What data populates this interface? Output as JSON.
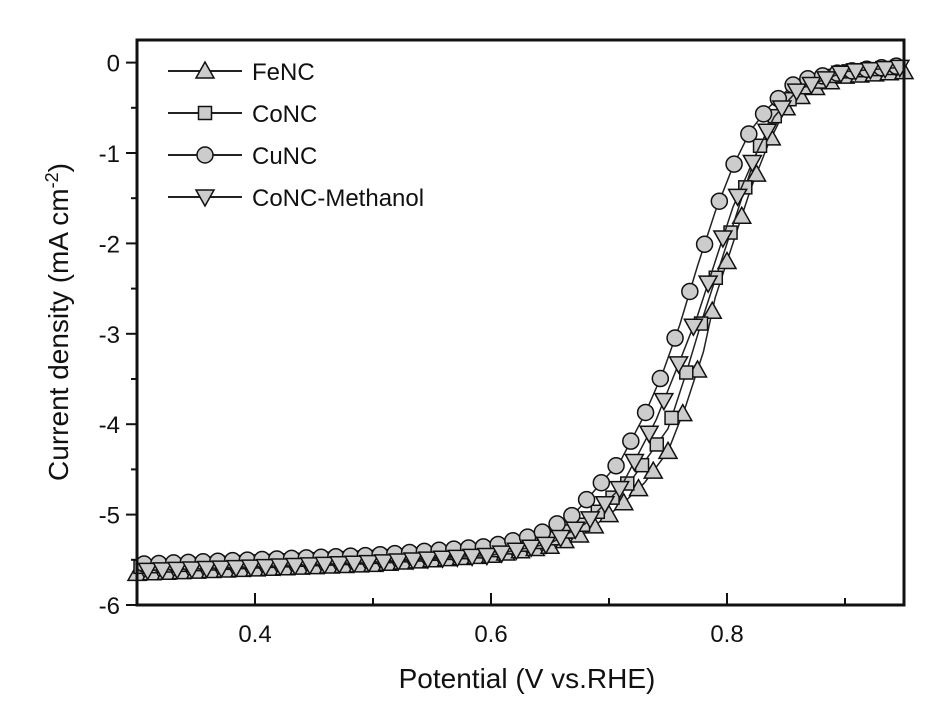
{
  "chart_data": {
    "type": "line",
    "title": "",
    "xlabel": "Potential (V vs.RHE)",
    "ylabel": "Current density (mA cm",
    "ylabel_sup": "-2",
    "ylabel_end": ")",
    "xlim": [
      0.3,
      0.95
    ],
    "ylim": [
      -6,
      0.25
    ],
    "x_ticks": [
      0.4,
      0.6,
      0.8
    ],
    "x_tick_labels": [
      "0.4",
      "0.6",
      "0.8"
    ],
    "y_ticks": [
      0,
      -1,
      -2,
      -3,
      -4,
      -5,
      -6
    ],
    "y_tick_labels": [
      "0",
      "-1",
      "-2",
      "-3",
      "-4",
      "-5",
      "-6"
    ],
    "grid": false,
    "legend_position": "top-left",
    "marker_fill": "#cccccc",
    "line_color": "#222222",
    "series": [
      {
        "name": "FeNC",
        "marker": "triangle-up",
        "x": [
          0.3,
          0.4,
          0.5,
          0.6,
          0.65,
          0.68,
          0.71,
          0.73,
          0.75,
          0.765,
          0.78,
          0.79,
          0.805,
          0.82,
          0.835,
          0.85,
          0.87,
          0.9,
          0.95
        ],
        "y": [
          -5.65,
          -5.6,
          -5.55,
          -5.45,
          -5.35,
          -5.2,
          -4.9,
          -4.65,
          -4.3,
          -3.8,
          -3.2,
          -2.6,
          -2.0,
          -1.4,
          -0.9,
          -0.5,
          -0.3,
          -0.15,
          -0.1
        ]
      },
      {
        "name": "CoNC",
        "marker": "square",
        "x": [
          0.3,
          0.4,
          0.5,
          0.6,
          0.65,
          0.68,
          0.72,
          0.75,
          0.765,
          0.78,
          0.795,
          0.81,
          0.825,
          0.84,
          0.86,
          0.9,
          0.95
        ],
        "y": [
          -5.58,
          -5.52,
          -5.47,
          -5.4,
          -5.28,
          -5.1,
          -4.6,
          -4.05,
          -3.45,
          -2.8,
          -2.2,
          -1.6,
          -1.0,
          -0.6,
          -0.3,
          -0.1,
          -0.05
        ]
      },
      {
        "name": "CuNC",
        "marker": "circle",
        "x": [
          0.3,
          0.4,
          0.5,
          0.6,
          0.64,
          0.67,
          0.71,
          0.73,
          0.745,
          0.76,
          0.775,
          0.79,
          0.805,
          0.82,
          0.835,
          0.86,
          0.9,
          0.95
        ],
        "y": [
          -5.55,
          -5.5,
          -5.45,
          -5.35,
          -5.22,
          -5.0,
          -4.4,
          -3.9,
          -3.45,
          -2.9,
          -2.25,
          -1.65,
          -1.15,
          -0.75,
          -0.5,
          -0.2,
          -0.1,
          -0.03
        ]
      },
      {
        "name": "CoNC-Methanol",
        "marker": "triangle-down",
        "x": [
          0.3,
          0.4,
          0.5,
          0.6,
          0.65,
          0.68,
          0.71,
          0.74,
          0.76,
          0.775,
          0.79,
          0.805,
          0.825,
          0.84,
          0.86,
          0.9,
          0.95
        ],
        "y": [
          -5.62,
          -5.58,
          -5.53,
          -5.45,
          -5.32,
          -5.1,
          -4.7,
          -3.95,
          -3.3,
          -2.8,
          -2.2,
          -1.6,
          -1.0,
          -0.6,
          -0.3,
          -0.1,
          -0.05
        ]
      }
    ]
  }
}
